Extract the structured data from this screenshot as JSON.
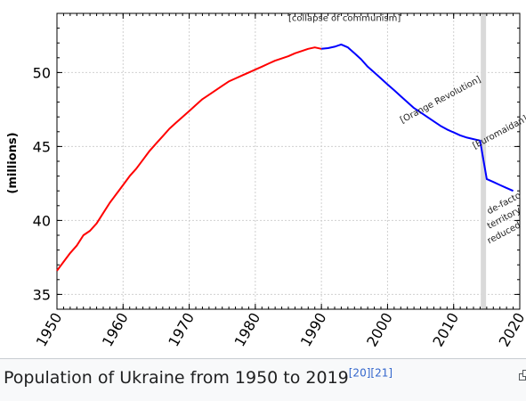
{
  "chart_data": {
    "type": "line",
    "title": "",
    "xlabel": "",
    "ylabel": "(millions)",
    "xlim": [
      1950,
      2020
    ],
    "ylim": [
      34,
      54
    ],
    "x_ticks": [
      "1950",
      "1960",
      "1970",
      "1980",
      "1990",
      "2000",
      "2010",
      "2020"
    ],
    "y_ticks": [
      "35",
      "40",
      "45",
      "50"
    ],
    "grid": true,
    "legend": "none",
    "colors": {
      "red": "#ff0000",
      "blue": "#0000ff",
      "band": "#d9d9d9",
      "axis": "#000000",
      "grid": "#d0d0d0"
    },
    "series": [
      {
        "color": "#ff0000",
        "x": [
          1950,
          1951,
          1952,
          1953,
          1954,
          1955,
          1956,
          1957,
          1958,
          1959,
          1960,
          1961,
          1962,
          1963,
          1964,
          1965,
          1966,
          1967,
          1968,
          1969,
          1970,
          1971,
          1972,
          1973,
          1974,
          1975,
          1976,
          1977,
          1978,
          1979,
          1980,
          1981,
          1982,
          1983,
          1984,
          1985,
          1986,
          1987,
          1988,
          1989,
          1990
        ],
        "values": [
          36.6,
          37.2,
          37.8,
          38.3,
          39.0,
          39.3,
          39.8,
          40.5,
          41.2,
          41.8,
          42.4,
          43.0,
          43.5,
          44.1,
          44.7,
          45.2,
          45.7,
          46.2,
          46.6,
          47.0,
          47.4,
          47.8,
          48.2,
          48.5,
          48.8,
          49.1,
          49.4,
          49.6,
          49.8,
          50.0,
          50.2,
          50.4,
          50.6,
          50.8,
          50.95,
          51.1,
          51.3,
          51.45,
          51.6,
          51.7,
          51.6
        ]
      },
      {
        "color": "#0000ff",
        "x": [
          1990,
          1991,
          1992,
          1993,
          1994,
          1995,
          1996,
          1997,
          1998,
          1999,
          2000,
          2001,
          2002,
          2003,
          2004,
          2005,
          2006,
          2007,
          2008,
          2009,
          2010,
          2011,
          2012,
          2013,
          2014,
          2015,
          2016,
          2017,
          2018,
          2019
        ],
        "values": [
          51.6,
          51.65,
          51.75,
          51.9,
          51.7,
          51.3,
          50.9,
          50.4,
          50.0,
          49.6,
          49.2,
          48.8,
          48.4,
          48.0,
          47.6,
          47.3,
          47.0,
          46.7,
          46.4,
          46.15,
          45.95,
          45.75,
          45.6,
          45.5,
          45.4,
          42.8,
          42.6,
          42.4,
          42.2,
          42.0
        ]
      }
    ],
    "events": [
      {
        "x": 1993.5,
        "y": 53.5,
        "label": "[collapse of communism]",
        "rotate": 0
      },
      {
        "x": 2008.2,
        "y": 48.0,
        "label": "[Orange Revolution]",
        "rotate": -28
      },
      {
        "x": 2017.2,
        "y": 45.8,
        "label": "[Euromaidan]",
        "rotate": -28
      },
      {
        "x": 2017.8,
        "y": 41.0,
        "label": "de-facto",
        "rotate": -28
      },
      {
        "x": 2017.8,
        "y": 40.0,
        "label": "territory",
        "rotate": -28
      },
      {
        "x": 2017.8,
        "y": 39.0,
        "label": "reduced",
        "rotate": -28
      }
    ],
    "shaded_band": {
      "x_from": 2014.1,
      "x_to": 2014.9
    }
  },
  "caption": {
    "text": "Population of Ukraine from 1950 to 2019",
    "refs": [
      "[20]",
      "[21]"
    ]
  }
}
